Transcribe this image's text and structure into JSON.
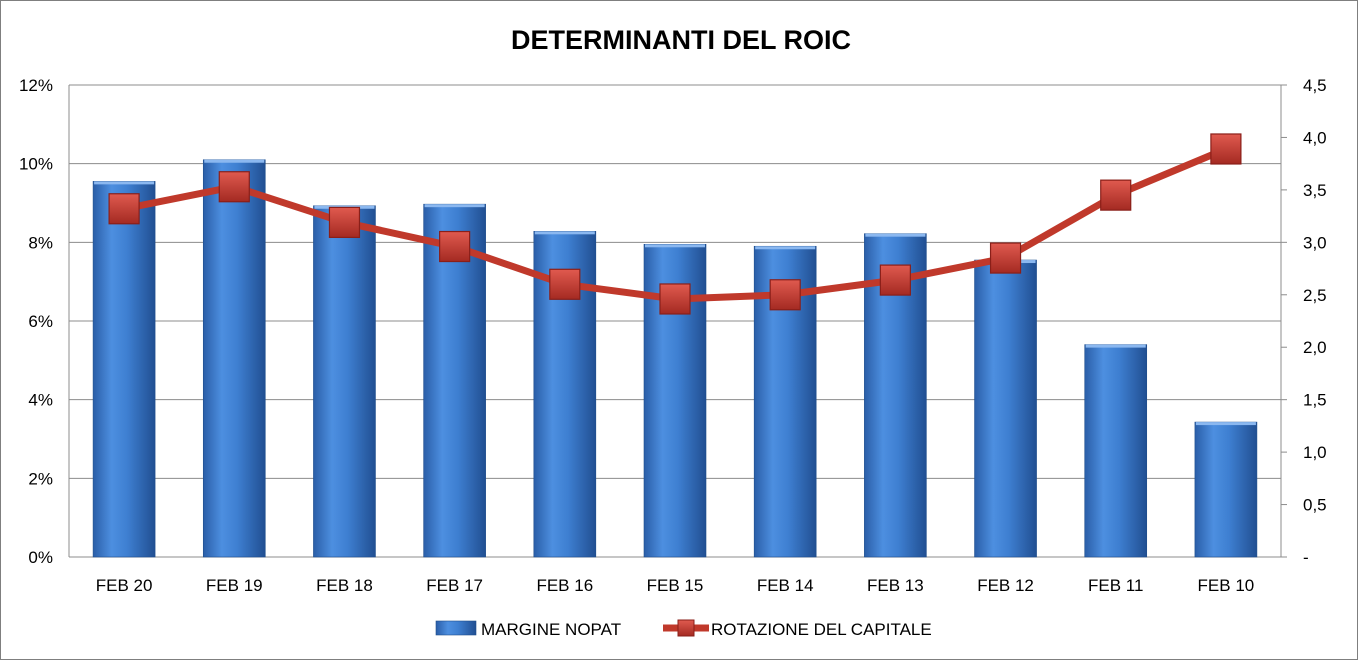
{
  "chart_data": {
    "type": "bar+line",
    "title": "DETERMINANTI DEL ROIC",
    "categories": [
      "FEB 20",
      "FEB 19",
      "FEB 18",
      "FEB 17",
      "FEB 16",
      "FEB 15",
      "FEB 14",
      "FEB 13",
      "FEB 12",
      "FEB 11",
      "FEB 10"
    ],
    "series": [
      {
        "name": "MARGINE NOPAT",
        "type": "bar",
        "axis": "left",
        "color": "#3f7fd0",
        "values": [
          9.55,
          10.1,
          8.93,
          8.97,
          8.28,
          7.95,
          7.9,
          8.22,
          7.55,
          5.4,
          3.43
        ]
      },
      {
        "name": "ROTAZIONE DEL CAPITALE",
        "type": "line",
        "axis": "right",
        "color": "#c0392b",
        "values": [
          3.32,
          3.53,
          3.19,
          2.96,
          2.6,
          2.46,
          2.5,
          2.64,
          2.85,
          3.45,
          3.89
        ]
      }
    ],
    "y_left": {
      "min": 0,
      "max": 12,
      "ticks": [
        0,
        2,
        4,
        6,
        8,
        10,
        12
      ],
      "tick_labels": [
        "0%",
        "2%",
        "4%",
        "6%",
        "8%",
        "10%",
        "12%"
      ]
    },
    "y_right": {
      "min": 0,
      "max": 4.5,
      "ticks": [
        0,
        0.5,
        1,
        1.5,
        2,
        2.5,
        3,
        3.5,
        4,
        4.5
      ],
      "tick_labels": [
        "-",
        "0,5",
        "1,0",
        "1,5",
        "2,0",
        "2,5",
        "3,0",
        "3,5",
        "4,0",
        "4,5"
      ]
    },
    "grid": true,
    "legend": "bottom"
  }
}
